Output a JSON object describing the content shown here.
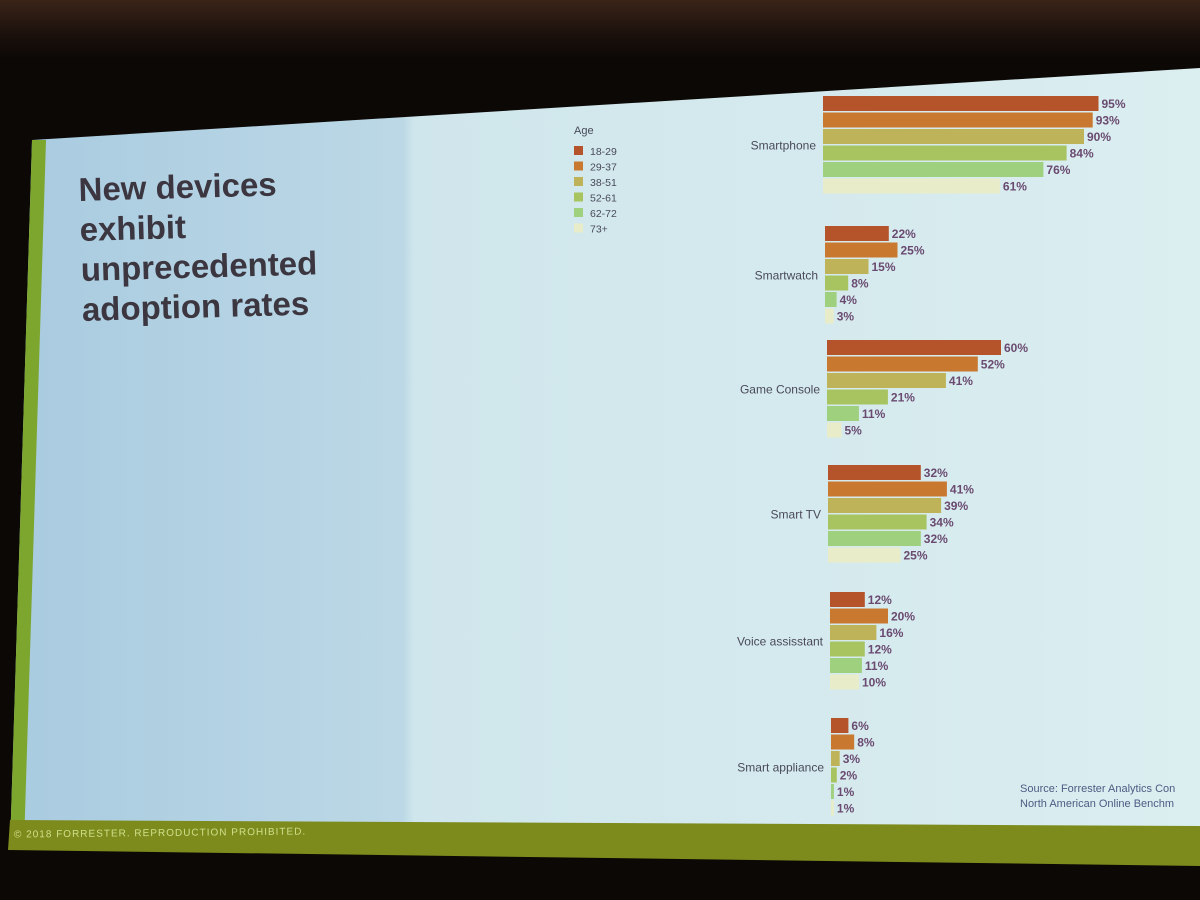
{
  "slide": {
    "title": "New devices\nexhibit\nunprecedented\nadoption rates",
    "footer": "© 2018 FORRESTER. REPRODUCTION PROHIBITED.",
    "source_line1": "Source: Forrester Analytics Con",
    "source_line2": "North American Online Benchm"
  },
  "colors": {
    "slide_background": "#cfe4ec",
    "accent_green": "#7da62e",
    "title_text": "#3b3640",
    "value_label": "#6a4a70"
  },
  "chart_data": {
    "type": "bar",
    "orientation": "horizontal",
    "legend_title": "Age",
    "legend_position": "top-left of chart",
    "categories": [
      "Smartphone",
      "Smartwatch",
      "Game Console",
      "Smart TV",
      "Voice assisstant",
      "Smart appliance"
    ],
    "series": [
      {
        "name": "18-29",
        "color": "#b5532a",
        "values": [
          95,
          22,
          60,
          32,
          12,
          6
        ]
      },
      {
        "name": "29-37",
        "color": "#c9782f",
        "values": [
          93,
          25,
          52,
          41,
          20,
          8
        ]
      },
      {
        "name": "38-51",
        "color": "#bfb35a",
        "values": [
          90,
          15,
          41,
          39,
          16,
          3
        ]
      },
      {
        "name": "52-61",
        "color": "#a8c460",
        "values": [
          84,
          8,
          21,
          34,
          12,
          2
        ]
      },
      {
        "name": "62-72",
        "color": "#9fd07e",
        "values": [
          76,
          4,
          11,
          32,
          11,
          1
        ]
      },
      {
        "name": "73+",
        "color": "#e9ecc8",
        "values": [
          61,
          3,
          5,
          25,
          10,
          1
        ]
      }
    ],
    "value_suffix": "%",
    "xlim": [
      0,
      100
    ],
    "grid": false
  }
}
